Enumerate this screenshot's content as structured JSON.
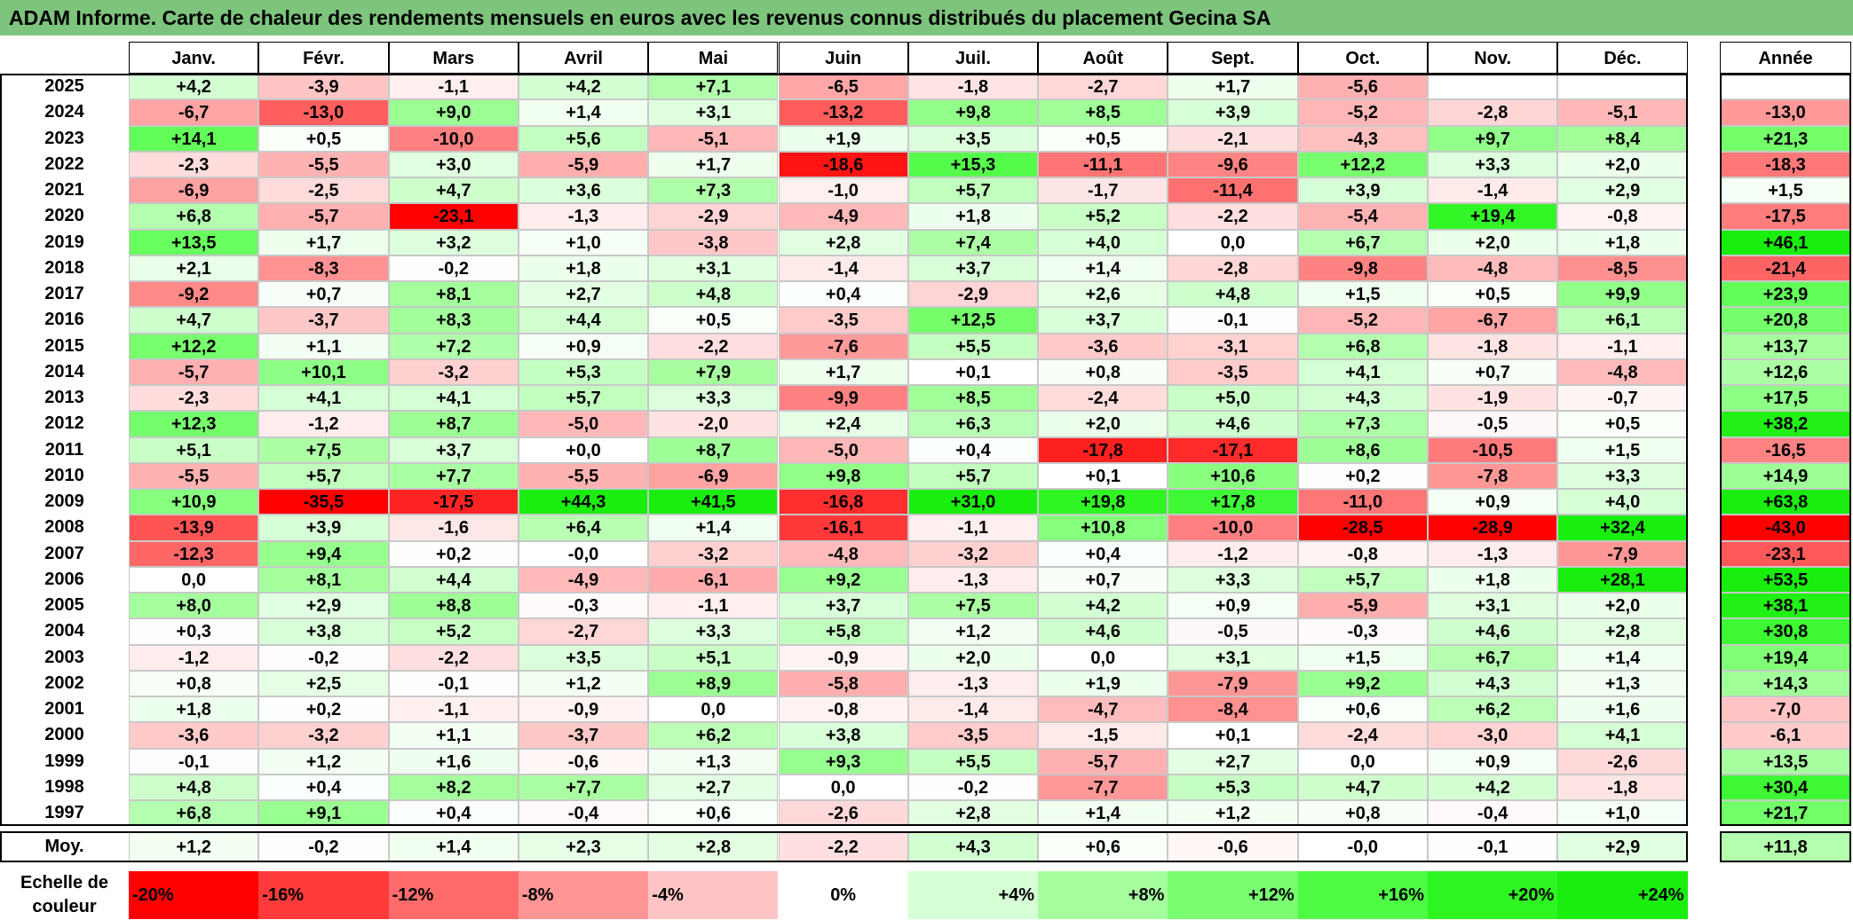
{
  "title": "ADAM Informe. Carte de chaleur des rendements mensuels en euros avec les revenus connus distribués du placement Gecina SA",
  "chart_data": {
    "type": "heatmap",
    "columns": [
      "Janv.",
      "Févr.",
      "Mars",
      "Avril",
      "Mai",
      "Juin",
      "Juil.",
      "Août",
      "Sept.",
      "Oct.",
      "Nov.",
      "Déc."
    ],
    "annual_column": "Année",
    "rows": [
      {
        "label": "2025",
        "values": [
          "+4,2",
          "-3,9",
          "-1,1",
          "+4,2",
          "+7,1",
          "-6,5",
          "-1,8",
          "-2,7",
          "+1,7",
          "-5,6",
          "",
          ""
        ],
        "annual": ""
      },
      {
        "label": "2024",
        "values": [
          "-6,7",
          "-13,0",
          "+9,0",
          "+1,4",
          "+3,1",
          "-13,2",
          "+9,8",
          "+8,5",
          "+3,9",
          "-5,2",
          "-2,8",
          "-5,1"
        ],
        "annual": "-13,0"
      },
      {
        "label": "2023",
        "values": [
          "+14,1",
          "+0,5",
          "-10,0",
          "+5,6",
          "-5,1",
          "+1,9",
          "+3,5",
          "+0,5",
          "-2,1",
          "-4,3",
          "+9,7",
          "+8,4"
        ],
        "annual": "+21,3"
      },
      {
        "label": "2022",
        "values": [
          "-2,3",
          "-5,5",
          "+3,0",
          "-5,9",
          "+1,7",
          "-18,6",
          "+15,3",
          "-11,1",
          "-9,6",
          "+12,2",
          "+3,3",
          "+2,0"
        ],
        "annual": "-18,3"
      },
      {
        "label": "2021",
        "values": [
          "-6,9",
          "-2,5",
          "+4,7",
          "+3,6",
          "+7,3",
          "-1,0",
          "+5,7",
          "-1,7",
          "-11,4",
          "+3,9",
          "-1,4",
          "+2,9"
        ],
        "annual": "+1,5"
      },
      {
        "label": "2020",
        "values": [
          "+6,8",
          "-5,7",
          "-23,1",
          "-1,3",
          "-2,9",
          "-4,9",
          "+1,8",
          "+5,2",
          "-2,2",
          "-5,4",
          "+19,4",
          "-0,8"
        ],
        "annual": "-17,5"
      },
      {
        "label": "2019",
        "values": [
          "+13,5",
          "+1,7",
          "+3,2",
          "+1,0",
          "-3,8",
          "+2,8",
          "+7,4",
          "+4,0",
          "0,0",
          "+6,7",
          "+2,0",
          "+1,8"
        ],
        "annual": "+46,1"
      },
      {
        "label": "2018",
        "values": [
          "+2,1",
          "-8,3",
          "-0,2",
          "+1,8",
          "+3,1",
          "-1,4",
          "+3,7",
          "+1,4",
          "-2,8",
          "-9,8",
          "-4,8",
          "-8,5"
        ],
        "annual": "-21,4"
      },
      {
        "label": "2017",
        "values": [
          "-9,2",
          "+0,7",
          "+8,1",
          "+2,7",
          "+4,8",
          "+0,4",
          "-2,9",
          "+2,6",
          "+4,8",
          "+1,5",
          "+0,5",
          "+9,9"
        ],
        "annual": "+23,9"
      },
      {
        "label": "2016",
        "values": [
          "+4,7",
          "-3,7",
          "+8,3",
          "+4,4",
          "+0,5",
          "-3,5",
          "+12,5",
          "+3,7",
          "-0,1",
          "-5,2",
          "-6,7",
          "+6,1"
        ],
        "annual": "+20,8"
      },
      {
        "label": "2015",
        "values": [
          "+12,2",
          "+1,1",
          "+7,2",
          "+0,9",
          "-2,2",
          "-7,6",
          "+5,5",
          "-3,6",
          "-3,1",
          "+6,8",
          "-1,8",
          "-1,1"
        ],
        "annual": "+13,7"
      },
      {
        "label": "2014",
        "values": [
          "-5,7",
          "+10,1",
          "-3,2",
          "+5,3",
          "+7,9",
          "+1,7",
          "+0,1",
          "+0,8",
          "-3,5",
          "+4,1",
          "+0,7",
          "-4,8"
        ],
        "annual": "+12,6"
      },
      {
        "label": "2013",
        "values": [
          "-2,3",
          "+4,1",
          "+4,1",
          "+5,7",
          "+3,3",
          "-9,9",
          "+8,5",
          "-2,4",
          "+5,0",
          "+4,3",
          "-1,9",
          "-0,7"
        ],
        "annual": "+17,5"
      },
      {
        "label": "2012",
        "values": [
          "+12,3",
          "-1,2",
          "+8,7",
          "-5,0",
          "-2,0",
          "+2,4",
          "+6,3",
          "+2,0",
          "+4,6",
          "+7,3",
          "-0,5",
          "+0,5"
        ],
        "annual": "+38,2"
      },
      {
        "label": "2011",
        "values": [
          "+5,1",
          "+7,5",
          "+3,7",
          "+0,0",
          "+8,7",
          "-5,0",
          "+0,4",
          "-17,8",
          "-17,1",
          "+8,6",
          "-10,5",
          "+1,5"
        ],
        "annual": "-16,5"
      },
      {
        "label": "2010",
        "values": [
          "-5,5",
          "+5,7",
          "+7,7",
          "-5,5",
          "-6,9",
          "+9,8",
          "+5,7",
          "+0,1",
          "+10,6",
          "+0,2",
          "-7,8",
          "+3,3"
        ],
        "annual": "+14,9"
      },
      {
        "label": "2009",
        "values": [
          "+10,9",
          "-35,5",
          "-17,5",
          "+44,3",
          "+41,5",
          "-16,8",
          "+31,0",
          "+19,8",
          "+17,8",
          "-11,0",
          "+0,9",
          "+4,0"
        ],
        "annual": "+63,8"
      },
      {
        "label": "2008",
        "values": [
          "-13,9",
          "+3,9",
          "-1,6",
          "+6,4",
          "+1,4",
          "-16,1",
          "-1,1",
          "+10,8",
          "-10,0",
          "-28,5",
          "-28,9",
          "+32,4"
        ],
        "annual": "-43,0"
      },
      {
        "label": "2007",
        "values": [
          "-12,3",
          "+9,4",
          "+0,2",
          "-0,0",
          "-3,2",
          "-4,8",
          "-3,2",
          "+0,4",
          "-1,2",
          "-0,8",
          "-1,3",
          "-7,9"
        ],
        "annual": "-23,1"
      },
      {
        "label": "2006",
        "values": [
          "0,0",
          "+8,1",
          "+4,4",
          "-4,9",
          "-6,1",
          "+9,2",
          "-1,3",
          "+0,7",
          "+3,3",
          "+5,7",
          "+1,8",
          "+28,1"
        ],
        "annual": "+53,5"
      },
      {
        "label": "2005",
        "values": [
          "+8,0",
          "+2,9",
          "+8,8",
          "-0,3",
          "-1,1",
          "+3,7",
          "+7,5",
          "+4,2",
          "+0,9",
          "-5,9",
          "+3,1",
          "+2,0"
        ],
        "annual": "+38,1"
      },
      {
        "label": "2004",
        "values": [
          "+0,3",
          "+3,8",
          "+5,2",
          "-2,7",
          "+3,3",
          "+5,8",
          "+1,2",
          "+4,6",
          "-0,5",
          "-0,3",
          "+4,6",
          "+2,8"
        ],
        "annual": "+30,8"
      },
      {
        "label": "2003",
        "values": [
          "-1,2",
          "-0,2",
          "-2,2",
          "+3,5",
          "+5,1",
          "-0,9",
          "+2,0",
          "0,0",
          "+3,1",
          "+1,5",
          "+6,7",
          "+1,4"
        ],
        "annual": "+19,4"
      },
      {
        "label": "2002",
        "values": [
          "+0,8",
          "+2,5",
          "-0,1",
          "+1,2",
          "+8,9",
          "-5,8",
          "-1,3",
          "+1,9",
          "-7,9",
          "+9,2",
          "+4,3",
          "+1,3"
        ],
        "annual": "+14,3"
      },
      {
        "label": "2001",
        "values": [
          "+1,8",
          "+0,2",
          "-1,1",
          "-0,9",
          "0,0",
          "-0,8",
          "-1,4",
          "-4,7",
          "-8,4",
          "+0,6",
          "+6,2",
          "+1,6"
        ],
        "annual": "-7,0"
      },
      {
        "label": "2000",
        "values": [
          "-3,6",
          "-3,2",
          "+1,1",
          "-3,7",
          "+6,2",
          "+3,8",
          "-3,5",
          "-1,5",
          "+0,1",
          "-2,4",
          "-3,0",
          "+4,1"
        ],
        "annual": "-6,1"
      },
      {
        "label": "1999",
        "values": [
          "-0,1",
          "+1,2",
          "+1,6",
          "-0,6",
          "+1,3",
          "+9,3",
          "+5,5",
          "-5,7",
          "+2,7",
          "0,0",
          "+0,9",
          "-2,6"
        ],
        "annual": "+13,5"
      },
      {
        "label": "1998",
        "values": [
          "+4,8",
          "+0,4",
          "+8,2",
          "+7,7",
          "+2,7",
          "0,0",
          "-0,2",
          "-7,7",
          "+5,3",
          "+4,7",
          "+4,2",
          "-1,8"
        ],
        "annual": "+30,4"
      },
      {
        "label": "1997",
        "values": [
          "+6,8",
          "+9,1",
          "+0,4",
          "-0,4",
          "+0,6",
          "-2,6",
          "+2,8",
          "+1,4",
          "+1,2",
          "+0,8",
          "-0,4",
          "+1,0"
        ],
        "annual": "+21,7"
      }
    ],
    "average": {
      "label": "Moy.",
      "values": [
        "+1,2",
        "-0,2",
        "+1,4",
        "+2,3",
        "+2,8",
        "-2,2",
        "+4,3",
        "+0,6",
        "-0,6",
        "-0,0",
        "-0,1",
        "+2,9"
      ],
      "annual": "+11,8"
    },
    "legend": {
      "label": "Echelle de couleur",
      "stops": [
        {
          "text": "-20%",
          "color": "#ff0000"
        },
        {
          "text": "-16%",
          "color": "#ff3a3a"
        },
        {
          "text": "-12%",
          "color": "#ff6b6b"
        },
        {
          "text": "-8%",
          "color": "#ff9595"
        },
        {
          "text": "-4%",
          "color": "#ffc4c4"
        },
        {
          "text": "0%",
          "color": "#ffffff"
        },
        {
          "text": "+4%",
          "color": "#d6ffd6"
        },
        {
          "text": "+8%",
          "color": "#a6ff9e"
        },
        {
          "text": "+12%",
          "color": "#79ff70"
        },
        {
          "text": "+16%",
          "color": "#4dfb44"
        },
        {
          "text": "+20%",
          "color": "#2ef522"
        },
        {
          "text": "+24%",
          "color": "#1aee0e"
        }
      ]
    }
  }
}
